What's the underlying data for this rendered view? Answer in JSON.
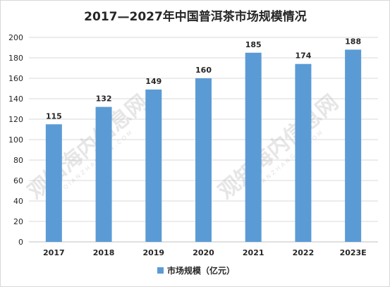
{
  "chart_data": {
    "type": "bar",
    "title": "2017—2027年中国普洱茶市场规模情况",
    "categories": [
      "2017",
      "2018",
      "2019",
      "2020",
      "2021",
      "2022",
      "2023E"
    ],
    "series": [
      {
        "name": "市场规模（亿元）",
        "values": [
          115,
          132,
          149,
          160,
          185,
          174,
          188
        ],
        "color": "#5b9bd5"
      }
    ],
    "ylim": [
      0,
      200
    ],
    "yticks": [
      0,
      20,
      40,
      60,
      80,
      100,
      120,
      140,
      160,
      180,
      200
    ],
    "grid": true,
    "data_labels": true,
    "legend_position": "bottom"
  },
  "watermark": {
    "text": "观知海内信息网",
    "subtext": "QIANZHANGCN.COM",
    "color": "#b8b8b8"
  }
}
